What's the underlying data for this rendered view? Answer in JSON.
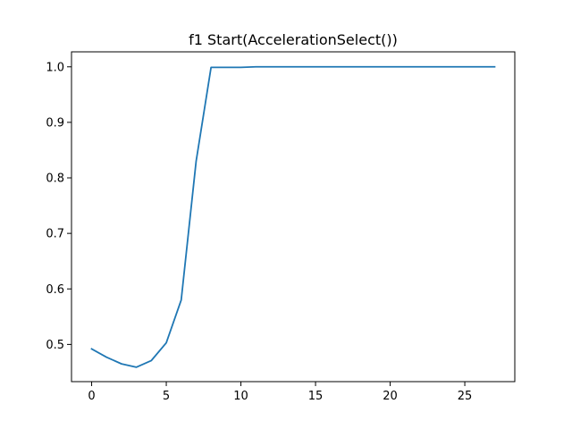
{
  "chart_data": {
    "type": "line",
    "title": "f1 Start(AccelerationSelect())",
    "xlabel": "",
    "ylabel": "",
    "xlim": [
      -1.35,
      28.35
    ],
    "ylim": [
      0.433,
      1.027
    ],
    "grid": false,
    "xticks": [
      0,
      5,
      10,
      15,
      20,
      25
    ],
    "yticks": [
      0.5,
      0.6,
      0.7,
      0.8,
      0.9,
      1.0
    ],
    "xtick_labels": [
      "0",
      "5",
      "10",
      "15",
      "20",
      "25"
    ],
    "ytick_labels": [
      "0.5",
      "0.6",
      "0.7",
      "0.8",
      "0.9",
      "1.0"
    ],
    "series": [
      {
        "color": "#1f77b4",
        "x": [
          0,
          1,
          2,
          3,
          4,
          5,
          6,
          7,
          8,
          9,
          10,
          11,
          12,
          13,
          14,
          15,
          16,
          17,
          18,
          19,
          20,
          21,
          22,
          23,
          24,
          25,
          26,
          27
        ],
        "values": [
          0.492,
          0.477,
          0.465,
          0.459,
          0.471,
          0.503,
          0.58,
          0.83,
          0.999,
          0.999,
          0.999,
          1.0,
          1.0,
          1.0,
          1.0,
          1.0,
          1.0,
          1.0,
          1.0,
          1.0,
          1.0,
          1.0,
          1.0,
          1.0,
          1.0,
          1.0,
          1.0,
          1.0
        ]
      }
    ]
  }
}
